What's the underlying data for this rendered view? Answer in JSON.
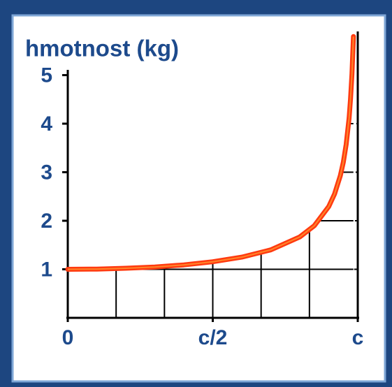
{
  "chart_data": {
    "type": "line",
    "title": "hmotnost (kg)",
    "x": [
      0,
      0.1,
      0.2,
      0.3,
      0.4,
      0.5,
      0.6,
      0.7,
      0.8,
      0.85,
      0.9,
      0.92,
      0.94,
      0.95,
      0.96,
      0.97,
      0.975,
      0.98,
      0.985
    ],
    "series": [
      {
        "name": "hmotnost",
        "color": "#ff3a10",
        "values": [
          1.0,
          1.005,
          1.021,
          1.048,
          1.091,
          1.155,
          1.25,
          1.4,
          1.667,
          1.898,
          2.294,
          2.552,
          2.931,
          3.203,
          3.571,
          4.113,
          4.5,
          5.025,
          5.795
        ]
      }
    ],
    "xlim": [
      0,
      1
    ],
    "xticks": [
      {
        "value": 0,
        "label": "0"
      },
      {
        "value": 0.5,
        "label": "c/2"
      },
      {
        "value": 1,
        "label": "c"
      }
    ],
    "ylim": [
      0,
      5.9
    ],
    "yticks": [
      1,
      2,
      3,
      4,
      5
    ],
    "grid": true
  }
}
